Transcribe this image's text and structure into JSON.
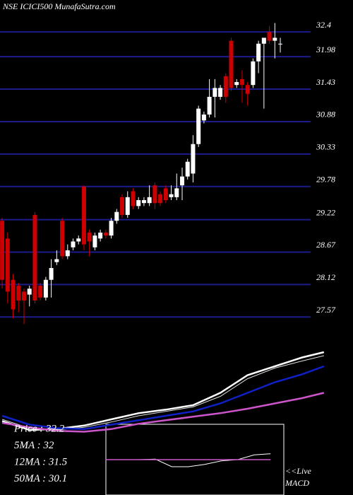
{
  "chart_data": [
    {
      "type": "candlestick",
      "title": "NSE ICICI500  MunafaSutra.com",
      "open": [
        29.2,
        28.9,
        28.2,
        28.1,
        28.0,
        27.95,
        29.3,
        28.1,
        27.9,
        28.2,
        28.5,
        29.2,
        28.6,
        28.75,
        28.85,
        29.78,
        29.0,
        28.75,
        28.9,
        29.0,
        28.95,
        29.2,
        29.6,
        29.3,
        29.7,
        29.45,
        29.5,
        29.5,
        29.8,
        29.65,
        29.75,
        29.6,
        29.6,
        29.8,
        29.95,
        30.0,
        30.5,
        30.9,
        31.0,
        31.3,
        31.3,
        31.65,
        32.25,
        31.5,
        31.6,
        31.5,
        31.5,
        31.9,
        32.2,
        32.4,
        32.25,
        32.2
      ],
      "high": [
        29.25,
        29.0,
        28.3,
        28.15,
        28.05,
        28.1,
        29.35,
        28.15,
        28.25,
        28.55,
        28.7,
        29.25,
        28.8,
        28.9,
        28.95,
        29.8,
        29.05,
        29.0,
        29.05,
        29.05,
        29.25,
        29.4,
        29.65,
        29.7,
        29.75,
        29.6,
        29.6,
        29.8,
        29.85,
        29.7,
        29.8,
        29.8,
        30.0,
        30.1,
        30.25,
        30.65,
        31.15,
        31.05,
        31.6,
        31.6,
        31.5,
        31.7,
        32.3,
        31.6,
        31.75,
        31.55,
        31.95,
        32.25,
        32.3,
        32.5,
        32.55,
        32.3
      ],
      "low": [
        28.05,
        27.8,
        27.55,
        27.65,
        27.45,
        27.75,
        27.8,
        27.85,
        27.85,
        27.9,
        28.45,
        28.55,
        28.55,
        28.7,
        28.8,
        28.7,
        28.6,
        28.7,
        28.85,
        28.9,
        28.9,
        29.15,
        29.25,
        29.25,
        29.4,
        29.4,
        29.45,
        29.45,
        29.4,
        29.45,
        29.5,
        29.55,
        29.55,
        29.55,
        29.9,
        29.85,
        30.45,
        30.85,
        30.95,
        30.95,
        31.25,
        31.2,
        31.4,
        31.45,
        31.2,
        31.15,
        31.45,
        31.7,
        31.1,
        32.2,
        31.95,
        32.05
      ],
      "close": [
        28.2,
        28.0,
        27.7,
        27.85,
        27.85,
        28.05,
        27.85,
        27.9,
        28.2,
        28.4,
        28.55,
        28.6,
        28.7,
        28.85,
        28.9,
        28.8,
        28.85,
        28.95,
        29.0,
        28.95,
        29.2,
        29.35,
        29.3,
        29.6,
        29.45,
        29.55,
        29.55,
        29.6,
        29.5,
        29.5,
        29.55,
        29.65,
        29.75,
        29.95,
        30.2,
        30.5,
        31.1,
        31.0,
        31.3,
        31.45,
        31.45,
        31.3,
        31.45,
        31.55,
        31.5,
        31.35,
        31.9,
        32.2,
        32.3,
        32.25,
        32.3,
        32.2
      ],
      "up_color": "#ffffff",
      "down_color": "#cc0000",
      "grid_color": "#1c1c8c",
      "xlim": [
        -0.4,
        59.8
      ],
      "ylim": [
        27.43,
        32.94
      ],
      "yticks": [
        27.57,
        28.12,
        28.67,
        29.22,
        29.78,
        30.33,
        30.88,
        31.43,
        31.98,
        32.4
      ],
      "grid": true
    },
    {
      "type": "line",
      "x": [
        0,
        5,
        10,
        15,
        20,
        25,
        30,
        35,
        40,
        45,
        50,
        55,
        59
      ],
      "xlim": [
        -0.4,
        59.8
      ],
      "ylim": [
        24.12,
        33.72
      ],
      "series": [
        {
          "color": "#ffffff",
          "width": 2.5,
          "values": [
            28.3,
            27.8,
            27.85,
            28.05,
            28.4,
            28.75,
            28.95,
            29.2,
            29.9,
            30.9,
            31.4,
            31.9,
            32.2
          ]
        },
        {
          "color": "#dddddd",
          "width": 1,
          "values": [
            28.4,
            27.9,
            27.8,
            27.95,
            28.25,
            28.6,
            28.85,
            29.1,
            29.7,
            30.7,
            31.3,
            31.7,
            32.0
          ]
        },
        {
          "color": "#1020c8",
          "width": 2.5,
          "values": [
            28.6,
            28.1,
            27.9,
            27.85,
            28.1,
            28.35,
            28.6,
            28.85,
            29.3,
            29.9,
            30.5,
            30.95,
            31.4
          ]
        },
        {
          "color": "#cc55cc",
          "width": 2.5,
          "values": [
            28.2,
            27.95,
            27.75,
            27.7,
            27.85,
            28.15,
            28.35,
            28.55,
            28.75,
            29.0,
            29.3,
            29.6,
            29.9
          ]
        }
      ],
      "annotations": [
        "Price   : 32.2",
        "5MA   : 32",
        "12MA : 31.5",
        "50MA : 30.1"
      ]
    },
    {
      "type": "line",
      "x": [
        0,
        1,
        2,
        3,
        4,
        5,
        6,
        7,
        8,
        9,
        10
      ],
      "xlim": [
        0,
        10.8
      ],
      "ylim": [
        -1.5,
        1.5
      ],
      "series": [
        {
          "color": "#ffffff",
          "width": 1,
          "values": [
            0,
            0,
            0,
            0.02,
            -0.3,
            -0.3,
            -0.2,
            -0.05,
            0,
            0.2,
            0.25
          ]
        },
        {
          "color": "#cc55cc",
          "width": 1.5,
          "values": [
            0,
            0,
            0,
            0,
            0,
            0,
            0,
            0,
            0,
            0,
            0
          ]
        }
      ],
      "annotations": [
        "<<Live",
        "MACD"
      ]
    }
  ]
}
